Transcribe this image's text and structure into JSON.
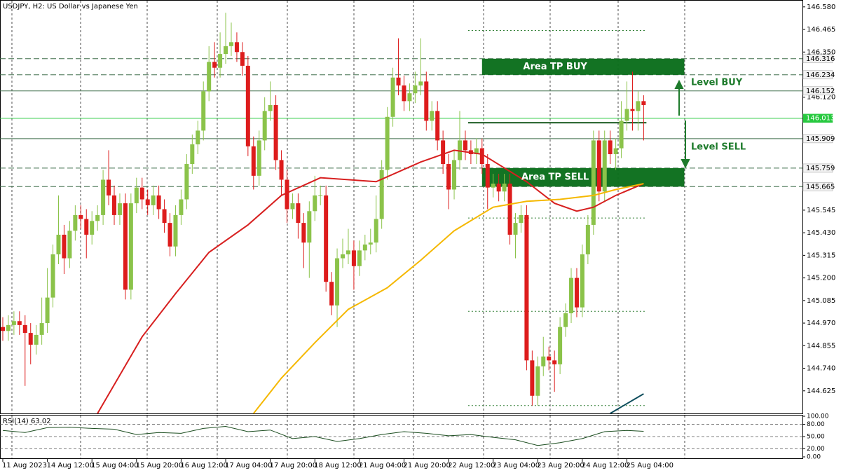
{
  "chart_data": [
    {
      "type": "candlestick",
      "title": "USDJPY, H2:  US Dollar vs Japanese Yen",
      "up_color": "#8bc34a",
      "down_color": "#dd1c1c",
      "open": [
        144.95,
        144.93,
        144.96,
        144.98,
        144.96,
        144.92,
        144.86,
        144.91,
        144.97,
        145.1,
        145.32,
        145.42,
        145.3,
        145.44,
        145.52,
        145.5,
        145.42,
        145.49,
        145.52,
        145.7,
        145.62,
        145.52,
        145.58,
        145.14,
        145.58,
        145.66,
        145.6,
        145.57,
        145.62,
        145.55,
        145.48,
        145.36,
        145.52,
        145.6,
        145.78,
        145.88,
        145.95,
        146.15,
        146.3,
        146.27,
        146.34,
        146.38,
        146.4,
        146.35,
        146.28,
        145.87,
        145.72,
        145.9,
        146.05,
        146.08,
        145.8,
        145.7,
        145.55,
        145.58,
        145.48,
        145.38,
        145.54,
        145.62,
        145.62,
        145.18,
        145.06,
        145.3,
        145.32,
        145.34,
        145.26,
        145.34,
        145.37,
        145.38,
        145.5,
        145.75,
        146.02,
        146.22,
        146.18,
        146.1,
        146.14,
        146.18,
        146.2,
        146.0,
        146.05,
        145.9,
        145.78,
        145.65,
        145.8,
        145.9,
        145.85,
        145.83,
        145.86,
        145.78,
        145.66,
        145.68,
        145.64,
        145.68,
        145.42,
        145.48,
        145.52,
        144.78,
        144.6,
        144.75,
        144.8,
        144.78,
        144.76,
        144.95,
        145.02,
        145.2,
        145.05,
        145.32,
        145.47,
        145.9,
        145.64,
        145.9,
        145.83,
        145.86,
        146.0,
        146.06,
        146.05,
        146.1
      ],
      "high": [
        145.0,
        145.01,
        145.03,
        145.03,
        145.01,
        144.97,
        144.96,
        145.1,
        145.25,
        145.37,
        145.62,
        145.47,
        145.49,
        145.57,
        145.57,
        145.55,
        145.54,
        145.57,
        145.75,
        145.85,
        145.67,
        145.63,
        145.63,
        145.63,
        145.71,
        145.71,
        145.65,
        145.67,
        145.67,
        145.6,
        145.53,
        145.57,
        145.65,
        145.83,
        145.93,
        146.0,
        146.2,
        146.38,
        146.4,
        146.45,
        146.55,
        146.5,
        146.45,
        146.4,
        146.33,
        145.92,
        145.95,
        146.12,
        146.2,
        146.13,
        145.85,
        145.75,
        145.63,
        145.63,
        145.53,
        145.59,
        145.72,
        145.67,
        145.67,
        145.23,
        145.35,
        145.4,
        145.45,
        145.39,
        145.39,
        145.42,
        145.45,
        145.62,
        145.8,
        146.07,
        146.27,
        146.42,
        146.23,
        146.19,
        146.25,
        146.42,
        146.25,
        146.1,
        146.1,
        145.95,
        145.83,
        145.85,
        146.05,
        145.95,
        145.9,
        145.91,
        145.91,
        145.83,
        145.73,
        145.73,
        145.73,
        145.73,
        145.53,
        145.57,
        145.57,
        144.83,
        144.8,
        144.9,
        144.85,
        144.83,
        145.0,
        145.07,
        145.25,
        145.25,
        145.37,
        145.52,
        145.95,
        145.95,
        145.95,
        145.95,
        145.91,
        146.1,
        146.2,
        146.25,
        146.15,
        146.13
      ],
      "low": [
        144.88,
        144.88,
        144.91,
        144.91,
        144.65,
        144.76,
        144.81,
        144.86,
        144.92,
        145.05,
        145.27,
        145.22,
        145.25,
        145.39,
        145.45,
        145.3,
        145.37,
        145.44,
        145.47,
        145.57,
        145.47,
        145.47,
        145.09,
        145.09,
        145.53,
        145.55,
        145.52,
        145.52,
        145.5,
        145.43,
        145.31,
        145.31,
        145.47,
        145.55,
        145.73,
        145.83,
        145.9,
        146.1,
        146.22,
        146.22,
        146.29,
        146.33,
        146.3,
        146.23,
        145.82,
        145.65,
        145.67,
        145.85,
        146.0,
        145.75,
        145.62,
        145.48,
        145.5,
        145.4,
        145.25,
        145.2,
        145.49,
        145.57,
        145.13,
        145.01,
        144.95,
        145.25,
        145.27,
        145.14,
        145.21,
        145.29,
        145.32,
        145.33,
        145.45,
        145.7,
        145.97,
        146.13,
        146.05,
        146.05,
        146.09,
        146.13,
        145.95,
        145.95,
        145.85,
        145.73,
        145.55,
        145.6,
        145.75,
        145.8,
        145.78,
        145.78,
        145.73,
        145.55,
        145.61,
        145.59,
        145.59,
        145.37,
        145.3,
        145.43,
        144.73,
        144.55,
        144.55,
        144.7,
        144.73,
        144.62,
        144.71,
        144.9,
        144.97,
        145.0,
        145.0,
        145.27,
        145.42,
        145.59,
        145.59,
        145.78,
        145.75,
        145.81,
        145.95,
        145.95,
        145.95,
        145.9
      ],
      "close": [
        144.93,
        144.96,
        144.98,
        144.96,
        144.92,
        144.86,
        144.91,
        144.97,
        145.1,
        145.32,
        145.42,
        145.3,
        145.44,
        145.52,
        145.5,
        145.42,
        145.49,
        145.52,
        145.7,
        145.62,
        145.52,
        145.58,
        145.14,
        145.58,
        145.66,
        145.6,
        145.57,
        145.62,
        145.55,
        145.48,
        145.36,
        145.52,
        145.6,
        145.78,
        145.88,
        145.95,
        146.15,
        146.3,
        146.27,
        146.34,
        146.38,
        146.4,
        146.35,
        146.28,
        145.87,
        145.72,
        145.9,
        146.05,
        146.08,
        145.8,
        145.7,
        145.55,
        145.58,
        145.48,
        145.38,
        145.54,
        145.62,
        145.62,
        145.18,
        145.06,
        145.3,
        145.32,
        145.34,
        145.26,
        145.34,
        145.37,
        145.38,
        145.5,
        145.75,
        146.02,
        146.22,
        146.18,
        146.1,
        146.14,
        146.18,
        146.2,
        146.0,
        146.05,
        145.9,
        145.78,
        145.65,
        145.8,
        145.9,
        145.85,
        145.83,
        145.86,
        145.78,
        145.66,
        145.68,
        145.64,
        145.68,
        145.42,
        145.48,
        145.52,
        144.78,
        144.6,
        144.75,
        144.8,
        144.78,
        144.76,
        144.95,
        145.02,
        145.2,
        145.05,
        145.32,
        145.47,
        145.9,
        145.64,
        145.9,
        145.83,
        145.86,
        146.0,
        146.06,
        146.05,
        146.1,
        146.08
      ],
      "series": [
        {
          "color": "#d71f1f",
          "x": [
            17,
            25,
            31,
            37,
            44,
            50,
            57,
            67,
            75,
            81,
            86,
            94,
            99,
            103,
            106,
            110,
            115
          ],
          "values": [
            144.51,
            144.9,
            145.12,
            145.33,
            145.47,
            145.62,
            145.71,
            145.69,
            145.79,
            145.85,
            145.83,
            145.69,
            145.58,
            145.54,
            145.56,
            145.62,
            145.68
          ]
        },
        {
          "color": "#f5b800",
          "x": [
            45,
            50,
            56,
            62,
            69,
            75,
            81,
            88,
            94,
            100,
            106,
            110,
            115
          ],
          "values": [
            144.51,
            144.69,
            144.87,
            145.04,
            145.15,
            145.29,
            145.44,
            145.56,
            145.59,
            145.6,
            145.62,
            145.65,
            145.68
          ]
        },
        {
          "color": "#0d4d5c",
          "x": [
            109,
            115
          ],
          "values": [
            144.51,
            144.61
          ]
        }
      ],
      "xlim": [
        -0.5,
        143.5
      ],
      "ylim": [
        144.51,
        146.615
      ],
      "xticks": [
        {
          "value": 0,
          "label": "11 Aug 2023"
        },
        {
          "value": 8,
          "label": "14 Aug 12:00"
        },
        {
          "value": 16,
          "label": "15 Aug 04:00"
        },
        {
          "value": 24,
          "label": "15 Aug 20:00"
        },
        {
          "value": 32,
          "label": "16 Aug 12:00"
        },
        {
          "value": 40,
          "label": "17 Aug 04:00"
        },
        {
          "value": 48,
          "label": "17 Aug 20:00"
        },
        {
          "value": 56,
          "label": "18 Aug 12:00"
        },
        {
          "value": 64,
          "label": "21 Aug 04:00"
        },
        {
          "value": 72,
          "label": "21 Aug 20:00"
        },
        {
          "value": 80,
          "label": "22 Aug 12:00"
        },
        {
          "value": 88,
          "label": "23 Aug 04:00"
        },
        {
          "value": 96,
          "label": "23 Aug 20:00"
        },
        {
          "value": 104,
          "label": "24 Aug 12:00"
        },
        {
          "value": 112,
          "label": "25 Aug 04:00"
        }
      ],
      "yticks": [
        {
          "value": 146.58,
          "label": "146.580"
        },
        146.465,
        {
          "value": 146.35,
          "label": "146.350"
        },
        {
          "value": 146.12,
          "label": "146.120"
        },
        145.545,
        {
          "value": 145.43,
          "label": "145.430"
        },
        145.315,
        {
          "value": 145.2,
          "label": "145.200"
        },
        145.085,
        {
          "value": 144.97,
          "label": "144.970"
        },
        144.855,
        {
          "value": 144.74,
          "label": "144.740"
        },
        144.625
      ],
      "levels": [
        {
          "value": 146.316,
          "style": "dashed",
          "color": "#3f6e4a"
        },
        {
          "value": 146.234,
          "style": "dashed",
          "color": "#3f6e4a"
        },
        {
          "value": 146.152,
          "style": "solid",
          "color": "#3f6e4a"
        },
        {
          "value": 146.013,
          "style": "solid",
          "color": "#27c93f",
          "label_color": "#27c93f"
        },
        {
          "value": 145.909,
          "style": "solid",
          "color": "#3f6e4a"
        },
        {
          "value": 145.759,
          "style": "dashed",
          "color": "#3f6e4a"
        },
        {
          "value": 145.665,
          "style": "dashed",
          "color": "#3f6e4a"
        }
      ],
      "segments": [
        {
          "value": 146.46,
          "x": [
            83.5,
            115.5
          ],
          "style": "dotted",
          "color": "#2e7d32"
        },
        {
          "value": 145.99,
          "x": [
            83.5,
            115.5
          ],
          "style": "solid",
          "color": "#1f5e24"
        },
        {
          "value": 145.505,
          "x": [
            83.5,
            115.5
          ],
          "style": "dotted",
          "color": "#2e7d32"
        },
        {
          "value": 145.03,
          "x": [
            83.5,
            115.5
          ],
          "style": "dotted",
          "color": "#2e7d32"
        },
        {
          "value": 144.55,
          "x": [
            83.5,
            115.5
          ],
          "style": "dotted",
          "color": "#2e7d32"
        }
      ],
      "areas": [
        {
          "label": "Area TP BUY",
          "from": 146.234,
          "to": 146.316,
          "x": [
            86,
            122.3
          ],
          "color": "#0b6e1c"
        },
        {
          "label": "Area TP SELL",
          "from": 145.665,
          "to": 145.759,
          "x": [
            86,
            122.3
          ],
          "color": "#0b6e1c"
        }
      ],
      "annotations": [
        "Level BUY",
        "Level SELL"
      ]
    },
    {
      "type": "line",
      "title": "RSI(14)",
      "ylim": [
        0,
        100
      ],
      "yticks": [
        {
          "value": 100,
          "label": "100.00"
        },
        {
          "value": 80,
          "label": "80.00"
        },
        {
          "value": 50,
          "label": "50.00"
        },
        {
          "value": 20,
          "label": "20.00"
        },
        {
          "value": 0,
          "label": "0.00"
        }
      ],
      "levels": [
        80,
        50,
        20
      ],
      "series": [
        {
          "color": "#1b4d1f",
          "x": [
            0,
            4,
            8,
            12,
            16,
            20,
            24,
            28,
            32,
            36,
            40,
            44,
            48,
            52,
            56,
            60,
            64,
            68,
            72,
            76,
            80,
            84,
            88,
            92,
            96,
            100,
            104,
            108,
            112,
            115
          ],
          "values": [
            65,
            60,
            72,
            73,
            70,
            68,
            55,
            60,
            58,
            70,
            75,
            62,
            66,
            45,
            50,
            38,
            45,
            55,
            62,
            58,
            52,
            55,
            48,
            42,
            28,
            35,
            45,
            62,
            65,
            63.02
          ]
        }
      ]
    }
  ]
}
